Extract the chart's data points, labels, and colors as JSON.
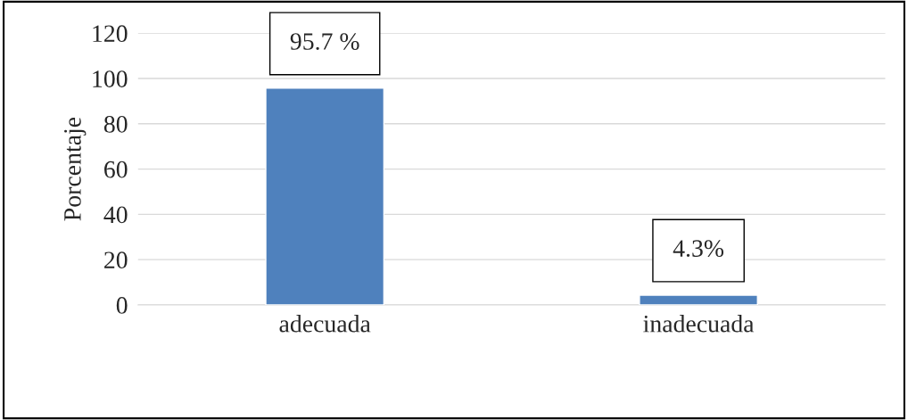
{
  "chart_data": {
    "type": "bar",
    "ylabel": "Porcentaje",
    "categories": [
      "adecuada",
      "inadecuada"
    ],
    "values": [
      95.7,
      4.3
    ],
    "value_labels": [
      "95.7 %",
      "4.3%"
    ],
    "color": "#4f81bd",
    "ylim": [
      0,
      120
    ],
    "yticks": [
      0,
      20,
      40,
      60,
      80,
      100,
      120
    ],
    "grid": "y"
  }
}
